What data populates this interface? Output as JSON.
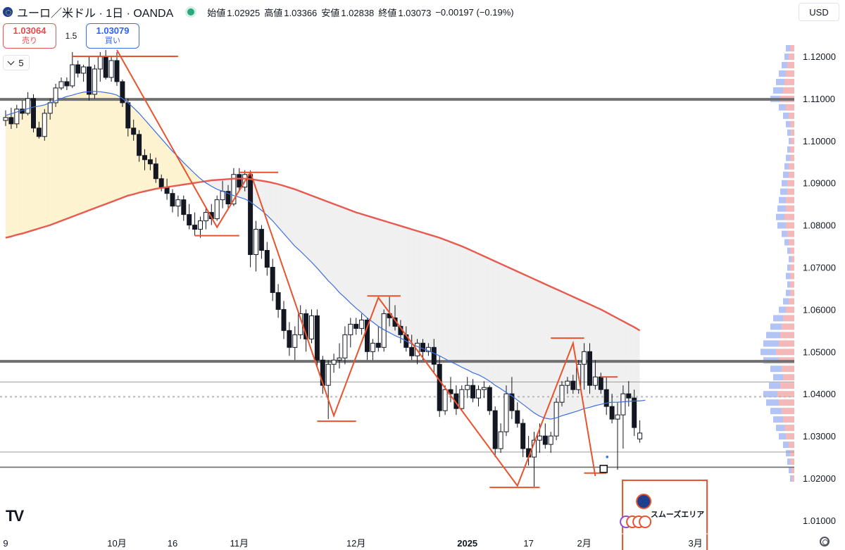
{
  "header": {
    "symbol": "ユーロ／米ドル · 1日 · OANDA",
    "open_label": "始値",
    "open": "1.02925",
    "high_label": "高値",
    "high": "1.03366",
    "low_label": "安値",
    "low": "1.02838",
    "close_label": "終値",
    "close": "1.03073",
    "change": "−0.00197 (−0.19%)",
    "flag_icon": "eu-us-flag-icon",
    "status_icon": "market-open-dot-icon"
  },
  "trade": {
    "sell_price": "1.03064",
    "sell_label": "売り",
    "spread": "1.5",
    "buy_price": "1.03079",
    "buy_label": "買い"
  },
  "indicators_collapse": {
    "count": "5"
  },
  "currency": {
    "label": "USD"
  },
  "logo": "TV",
  "colors": {
    "bull_fill": "#ffffff",
    "bear_fill": "#131722",
    "candle_stroke": "#131722",
    "ma_fast": "#3d6fe0",
    "ma_slow": "#e85a4f",
    "trend": "#e8532e",
    "level": "#6b6b6b",
    "fill_warm": "#fdf3d0",
    "fill_gray": "#f0f0f0",
    "vp_blue": "#9fb5f2",
    "vp_red": "#f2a6a6"
  },
  "chart_data": {
    "type": "candlestick",
    "price_axis": {
      "range": [
        1.0068,
        1.1255
      ],
      "ticks": [
        "1.12000",
        "1.11000",
        "1.10000",
        "1.09000",
        "1.08000",
        "1.07000",
        "1.06000",
        "1.05000",
        "1.04000",
        "1.03000",
        "1.02000",
        "1.01000"
      ]
    },
    "time_axis": {
      "labels": [
        {
          "text": "9",
          "bar": 0
        },
        {
          "text": "10月",
          "bar": 20
        },
        {
          "text": "16",
          "bar": 30
        },
        {
          "text": "11月",
          "bar": 42
        },
        {
          "text": "12月",
          "bar": 63
        },
        {
          "text": "2025",
          "bar": 83,
          "bold": true
        },
        {
          "text": "17",
          "bar": 94
        },
        {
          "text": "2月",
          "bar": 104
        },
        {
          "text": "3月",
          "bar": 124
        }
      ]
    },
    "ohlc": [
      [
        1.1048,
        1.1072,
        1.1035,
        1.1055
      ],
      [
        1.1055,
        1.1078,
        1.1028,
        1.104
      ],
      [
        1.104,
        1.1085,
        1.103,
        1.1075
      ],
      [
        1.1075,
        1.1095,
        1.105,
        1.1065
      ],
      [
        1.1065,
        1.1115,
        1.106,
        1.11
      ],
      [
        1.11,
        1.111,
        1.102,
        1.103
      ],
      [
        1.103,
        1.1045,
        1.1005,
        1.101
      ],
      [
        1.101,
        1.1075,
        1.1,
        1.1065
      ],
      [
        1.1065,
        1.11,
        1.105,
        1.109
      ],
      [
        1.109,
        1.1135,
        1.108,
        1.1125
      ],
      [
        1.1125,
        1.115,
        1.112,
        1.114
      ],
      [
        1.114,
        1.115,
        1.112,
        1.113
      ],
      [
        1.113,
        1.121,
        1.1125,
        1.118
      ],
      [
        1.118,
        1.119,
        1.115,
        1.116
      ],
      [
        1.116,
        1.118,
        1.114,
        1.1175
      ],
      [
        1.1175,
        1.12,
        1.1095,
        1.111
      ],
      [
        1.111,
        1.118,
        1.11,
        1.117
      ],
      [
        1.117,
        1.121,
        1.114,
        1.12
      ],
      [
        1.12,
        1.1215,
        1.1145,
        1.115
      ],
      [
        1.115,
        1.12,
        1.114,
        1.119
      ],
      [
        1.119,
        1.121,
        1.113,
        1.114
      ],
      [
        1.114,
        1.1145,
        1.108,
        1.109
      ],
      [
        1.109,
        1.11,
        1.101,
        1.103
      ],
      [
        1.103,
        1.105,
        1.1,
        1.1015
      ],
      [
        1.1015,
        1.1025,
        1.095,
        1.0965
      ],
      [
        1.0965,
        1.098,
        1.093,
        1.0955
      ],
      [
        1.0955,
        1.097,
        1.093,
        1.0945
      ],
      [
        1.0945,
        1.096,
        1.09,
        1.091
      ],
      [
        1.091,
        1.092,
        1.088,
        1.089
      ],
      [
        1.089,
        1.091,
        1.086,
        1.0875
      ],
      [
        1.0875,
        1.0885,
        1.083,
        1.0845
      ],
      [
        1.0845,
        1.087,
        1.082,
        1.086
      ],
      [
        1.086,
        1.087,
        1.081,
        1.0825
      ],
      [
        1.0825,
        1.085,
        1.079,
        1.08
      ],
      [
        1.08,
        1.083,
        1.0775,
        1.079
      ],
      [
        1.079,
        1.082,
        1.077,
        1.081
      ],
      [
        1.081,
        1.084,
        1.079,
        1.083
      ],
      [
        1.083,
        1.085,
        1.08,
        1.0815
      ],
      [
        1.0815,
        1.087,
        1.081,
        1.086
      ],
      [
        1.086,
        1.0905,
        1.084,
        1.088
      ],
      [
        1.088,
        1.0895,
        1.084,
        1.085
      ],
      [
        1.085,
        1.0935,
        1.0845,
        1.092
      ],
      [
        1.092,
        1.0935,
        1.088,
        1.089
      ],
      [
        1.089,
        1.093,
        1.088,
        1.092
      ],
      [
        1.092,
        1.093,
        1.07,
        1.073
      ],
      [
        1.073,
        1.081,
        1.069,
        1.079
      ],
      [
        1.079,
        1.08,
        1.072,
        1.074
      ],
      [
        1.074,
        1.076,
        1.068,
        1.07
      ],
      [
        1.07,
        1.072,
        1.062,
        1.064
      ],
      [
        1.064,
        1.066,
        1.058,
        1.06
      ],
      [
        1.06,
        1.062,
        1.053,
        1.055
      ],
      [
        1.055,
        1.057,
        1.049,
        1.051
      ],
      [
        1.051,
        1.056,
        1.048,
        1.054
      ],
      [
        1.054,
        1.061,
        1.053,
        1.059
      ],
      [
        1.059,
        1.06,
        1.05,
        1.053
      ],
      [
        1.053,
        1.06,
        1.052,
        1.0585
      ],
      [
        1.0585,
        1.06,
        1.046,
        1.048
      ],
      [
        1.048,
        1.049,
        1.04,
        1.042
      ],
      [
        1.042,
        1.048,
        1.034,
        1.047
      ],
      [
        1.047,
        1.0495,
        1.045,
        1.048
      ],
      [
        1.048,
        1.052,
        1.046,
        1.0485
      ],
      [
        1.0485,
        1.056,
        1.047,
        1.054
      ],
      [
        1.054,
        1.058,
        1.051,
        1.0565
      ],
      [
        1.0565,
        1.058,
        1.054,
        1.0555
      ],
      [
        1.0555,
        1.059,
        1.054,
        1.0575
      ],
      [
        1.0575,
        1.058,
        1.048,
        1.05
      ],
      [
        1.05,
        1.053,
        1.048,
        1.052
      ],
      [
        1.052,
        1.056,
        1.05,
        1.051
      ],
      [
        1.051,
        1.06,
        1.05,
        1.059
      ],
      [
        1.059,
        1.063,
        1.056,
        1.058
      ],
      [
        1.058,
        1.061,
        1.055,
        1.056
      ],
      [
        1.056,
        1.0575,
        1.052,
        1.054
      ],
      [
        1.054,
        1.056,
        1.05,
        1.051
      ],
      [
        1.051,
        1.054,
        1.048,
        1.049
      ],
      [
        1.049,
        1.053,
        1.047,
        1.052
      ],
      [
        1.052,
        1.053,
        1.048,
        1.05
      ],
      [
        1.05,
        1.052,
        1.049,
        1.051
      ],
      [
        1.051,
        1.053,
        1.045,
        1.047
      ],
      [
        1.047,
        1.049,
        1.0345,
        1.036
      ],
      [
        1.036,
        1.042,
        1.035,
        1.041
      ],
      [
        1.041,
        1.044,
        1.038,
        1.04
      ],
      [
        1.04,
        1.042,
        1.035,
        1.0365
      ],
      [
        1.0365,
        1.042,
        1.036,
        1.041
      ],
      [
        1.041,
        1.044,
        1.039,
        1.042
      ],
      [
        1.042,
        1.0435,
        1.038,
        1.039
      ],
      [
        1.039,
        1.042,
        1.037,
        1.041
      ],
      [
        1.041,
        1.043,
        1.039,
        1.0415
      ],
      [
        1.0415,
        1.042,
        1.035,
        1.036
      ],
      [
        1.036,
        1.037,
        1.025,
        1.027
      ],
      [
        1.027,
        1.033,
        1.026,
        1.031
      ],
      [
        1.031,
        1.042,
        1.03,
        1.04
      ],
      [
        1.04,
        1.044,
        1.034,
        1.036
      ],
      [
        1.036,
        1.038,
        1.032,
        1.033
      ],
      [
        1.033,
        1.034,
        1.025,
        1.027
      ],
      [
        1.027,
        1.03,
        1.023,
        1.025
      ],
      [
        1.025,
        1.031,
        1.018,
        1.029
      ],
      [
        1.029,
        1.033,
        1.026,
        1.03
      ],
      [
        1.03,
        1.033,
        1.027,
        1.028
      ],
      [
        1.028,
        1.031,
        1.026,
        1.03
      ],
      [
        1.03,
        1.039,
        1.029,
        1.038
      ],
      [
        1.038,
        1.043,
        1.037,
        1.042
      ],
      [
        1.042,
        1.044,
        1.04,
        1.043
      ],
      [
        1.043,
        1.0445,
        1.04,
        1.041
      ],
      [
        1.041,
        1.048,
        1.04,
        1.047
      ],
      [
        1.047,
        1.052,
        1.041,
        1.05
      ],
      [
        1.05,
        1.052,
        1.04,
        1.042
      ],
      [
        1.042,
        1.048,
        1.041,
        1.044
      ],
      [
        1.044,
        1.045,
        1.04,
        1.041
      ],
      [
        1.041,
        1.044,
        1.035,
        1.037
      ],
      [
        1.037,
        1.04,
        1.033,
        1.034
      ],
      [
        1.034,
        1.038,
        1.022,
        1.035
      ],
      [
        1.035,
        1.042,
        1.027,
        1.04
      ],
      [
        1.04,
        1.043,
        1.037,
        1.039
      ],
      [
        1.039,
        1.041,
        1.03,
        1.032
      ],
      [
        1.0293,
        1.0337,
        1.0284,
        1.0307
      ]
    ],
    "ma_fast": [
      1.106,
      1.1064,
      1.1068,
      1.1072,
      1.1076,
      1.108,
      1.1082,
      1.1085,
      1.109,
      1.1095,
      1.11,
      1.1105,
      1.1108,
      1.1112,
      1.1115,
      1.1116,
      1.1117,
      1.1116,
      1.1114,
      1.1112,
      1.1108,
      1.11,
      1.109,
      1.1078,
      1.1065,
      1.105,
      1.1035,
      1.102,
      1.1005,
      1.099,
      1.0975,
      1.0962,
      1.0948,
      1.0935,
      1.0922,
      1.091,
      1.09,
      1.0892,
      1.0885,
      1.088,
      1.0875,
      1.087,
      1.0866,
      1.0862,
      1.0855,
      1.0845,
      1.0835,
      1.0823,
      1.081,
      1.0795,
      1.078,
      1.0765,
      1.075,
      1.0738,
      1.0725,
      1.0712,
      1.0698,
      1.0683,
      1.0668,
      1.0655,
      1.064,
      1.0628,
      1.0615,
      1.0603,
      1.0592,
      1.058,
      1.057,
      1.056,
      1.0552,
      1.0545,
      1.0538,
      1.0532,
      1.0525,
      1.0518,
      1.0512,
      1.0507,
      1.0502,
      1.0496,
      1.049,
      1.0483,
      1.0476,
      1.047,
      1.0463,
      1.0457,
      1.045,
      1.0445,
      1.0438,
      1.043,
      1.042,
      1.0412,
      1.0403,
      1.0395,
      1.0385,
      1.0375,
      1.0365,
      1.0355,
      1.0347,
      1.0342,
      1.034,
      1.0343,
      1.0348,
      1.0352,
      1.0356,
      1.036,
      1.0365,
      1.0368,
      1.0372,
      1.0375,
      1.0378,
      1.038,
      1.038,
      1.0381,
      1.0382,
      1.0383,
      1.0383,
      1.0385
    ],
    "ma_slow": [
      1.077,
      1.0773,
      1.0777,
      1.078,
      1.0784,
      1.0788,
      1.0792,
      1.0796,
      1.08,
      1.0805,
      1.081,
      1.0815,
      1.082,
      1.0825,
      1.083,
      1.0835,
      1.084,
      1.0845,
      1.085,
      1.0855,
      1.086,
      1.0865,
      1.087,
      1.0873,
      1.0877,
      1.088,
      1.0883,
      1.0886,
      1.0888,
      1.089,
      1.0892,
      1.0894,
      1.0896,
      1.0898,
      1.09,
      1.0902,
      1.0904,
      1.0906,
      1.0907,
      1.0908,
      1.0909,
      1.091,
      1.091,
      1.091,
      1.0909,
      1.0907,
      1.0905,
      1.0903,
      1.09,
      1.0897,
      1.0893,
      1.0889,
      1.0885,
      1.088,
      1.0875,
      1.087,
      1.0865,
      1.086,
      1.0855,
      1.085,
      1.0845,
      1.084,
      1.0835,
      1.083,
      1.0826,
      1.0822,
      1.0818,
      1.0814,
      1.081,
      1.0806,
      1.0802,
      1.0798,
      1.0794,
      1.079,
      1.0786,
      1.0782,
      1.0778,
      1.0774,
      1.077,
      1.0765,
      1.076,
      1.0755,
      1.075,
      1.0744,
      1.0738,
      1.0732,
      1.0726,
      1.072,
      1.0714,
      1.0708,
      1.0702,
      1.0696,
      1.069,
      1.0684,
      1.0678,
      1.0672,
      1.0666,
      1.066,
      1.0654,
      1.0648,
      1.0642,
      1.0636,
      1.063,
      1.0624,
      1.0618,
      1.0612,
      1.0606,
      1.06,
      1.0593,
      1.0586,
      1.0579,
      1.0572,
      1.0565,
      1.0558,
      1.055
    ],
    "levels": [
      {
        "price": 1.1098,
        "style": "thick"
      },
      {
        "price": 1.0477,
        "style": "thick"
      },
      {
        "price": 1.0428,
        "style": "thin"
      },
      {
        "price": 1.0393,
        "style": "dotted"
      },
      {
        "price": 1.0262,
        "style": "thin"
      },
      {
        "price": 1.0226,
        "style": "medium"
      }
    ],
    "zigzag": [
      [
        20,
        1.1215
      ],
      [
        38,
        1.0795
      ],
      [
        44,
        1.0925
      ],
      [
        59,
        1.0348
      ],
      [
        67,
        1.0628
      ],
      [
        92,
        1.0182
      ],
      [
        102,
        1.052
      ],
      [
        106,
        1.0205
      ]
    ],
    "peak_marks": [
      {
        "bar": 20,
        "price": 1.12,
        "from": 12,
        "to": 31
      },
      {
        "bar": 38,
        "price": 1.0775,
        "from": 34,
        "to": 42
      },
      {
        "bar": 44,
        "price": 1.0925,
        "from": 42,
        "to": 49
      },
      {
        "bar": 59,
        "price": 1.0335,
        "from": 56,
        "to": 63
      },
      {
        "bar": 67,
        "price": 1.0632,
        "from": 65,
        "to": 71
      },
      {
        "bar": 92,
        "price": 1.0178,
        "from": 87,
        "to": 96
      },
      {
        "bar": 102,
        "price": 1.0532,
        "from": 98,
        "to": 104
      },
      {
        "bar": 106,
        "price": 1.0212,
        "from": 104,
        "to": 108
      },
      {
        "bar": 109,
        "price": 1.044,
        "from": 107,
        "to": 110
      }
    ],
    "volume_profile": [
      [
        1.122,
        12,
        6
      ],
      [
        1.12,
        14,
        8
      ],
      [
        1.118,
        18,
        10
      ],
      [
        1.116,
        22,
        12
      ],
      [
        1.114,
        26,
        14
      ],
      [
        1.112,
        30,
        16
      ],
      [
        1.11,
        34,
        20
      ],
      [
        1.108,
        22,
        12
      ],
      [
        1.106,
        16,
        8
      ],
      [
        1.104,
        12,
        6
      ],
      [
        1.102,
        10,
        5
      ],
      [
        1.1,
        8,
        5
      ],
      [
        1.098,
        10,
        6
      ],
      [
        1.096,
        12,
        6
      ],
      [
        1.094,
        14,
        8
      ],
      [
        1.092,
        16,
        8
      ],
      [
        1.09,
        18,
        10
      ],
      [
        1.088,
        20,
        10
      ],
      [
        1.086,
        22,
        12
      ],
      [
        1.084,
        24,
        12
      ],
      [
        1.082,
        26,
        14
      ],
      [
        1.08,
        24,
        12
      ],
      [
        1.078,
        18,
        10
      ],
      [
        1.076,
        14,
        8
      ],
      [
        1.074,
        10,
        6
      ],
      [
        1.072,
        8,
        4
      ],
      [
        1.07,
        10,
        6
      ],
      [
        1.068,
        12,
        6
      ],
      [
        1.066,
        10,
        6
      ],
      [
        1.064,
        12,
        6
      ],
      [
        1.062,
        16,
        8
      ],
      [
        1.06,
        22,
        12
      ],
      [
        1.058,
        30,
        16
      ],
      [
        1.056,
        34,
        18
      ],
      [
        1.054,
        40,
        20
      ],
      [
        1.052,
        44,
        22
      ],
      [
        1.05,
        48,
        26
      ],
      [
        1.048,
        44,
        22
      ],
      [
        1.046,
        34,
        18
      ],
      [
        1.044,
        30,
        16
      ],
      [
        1.042,
        36,
        20
      ],
      [
        1.04,
        44,
        24
      ],
      [
        1.038,
        40,
        22
      ],
      [
        1.036,
        34,
        18
      ],
      [
        1.034,
        30,
        16
      ],
      [
        1.032,
        26,
        14
      ],
      [
        1.03,
        22,
        12
      ],
      [
        1.028,
        16,
        8
      ],
      [
        1.026,
        12,
        6
      ],
      [
        1.024,
        10,
        6
      ],
      [
        1.022,
        8,
        4
      ],
      [
        1.02,
        6,
        3
      ]
    ],
    "projection": {
      "bar": 107.5,
      "price": 1.0222
    },
    "area_label": "スムーズエリア"
  }
}
